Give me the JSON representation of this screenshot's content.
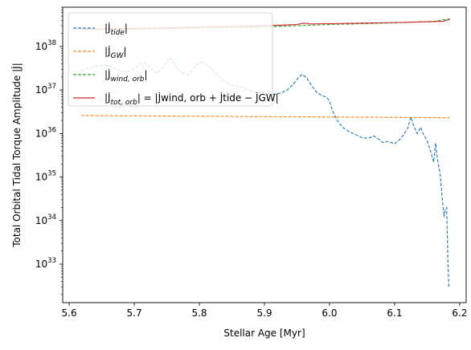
{
  "chart_data": {
    "type": "line",
    "xlabel": "Stellar Age [Myr]",
    "ylabel": "Total Orbital Tidal Torque Amplitude |J̇|",
    "xlim": [
      5.59,
      6.21
    ],
    "ylim": [
      1.3e+32,
      8e+38
    ],
    "yscale": "log",
    "grid": false,
    "legend_position": "upper-left",
    "x_ticks": [
      5.6,
      5.7,
      5.8,
      5.9,
      6.0,
      6.1,
      6.2
    ],
    "x_tick_labels": [
      "5.6",
      "5.7",
      "5.8",
      "5.9",
      "6.0",
      "6.1",
      "6.2"
    ],
    "y_ticks": [
      1e+33,
      1e+34,
      1e+35,
      1e+36,
      1e+37,
      1e+38
    ],
    "y_tick_labels": [
      {
        "base": "10",
        "exp": "33"
      },
      {
        "base": "10",
        "exp": "34"
      },
      {
        "base": "10",
        "exp": "35"
      },
      {
        "base": "10",
        "exp": "36"
      },
      {
        "base": "10",
        "exp": "37"
      },
      {
        "base": "10",
        "exp": "38"
      }
    ],
    "legend": [
      {
        "label": "|J̇tide|",
        "main": "|J̇",
        "sub": "tide",
        "tail": "|",
        "color": "#1f77b4",
        "dash": true
      },
      {
        "label": "|J̇GW|",
        "main": "|J̇",
        "sub": "GW",
        "tail": "|",
        "color": "#ff7f0e",
        "dash": true
      },
      {
        "label": "|J̇wind,orb|",
        "main": "|J̇",
        "sub": "wind, orb",
        "tail": "|",
        "color": "#2ca02c",
        "dash": true
      },
      {
        "label": "|J̇tot,orb| = |J̇wind,orb + J̇tide − J̇GW|",
        "main": "|J̇",
        "sub": "tot, orb",
        "tail": "| = |J̇wind, orb + J̇tide − J̇GW|",
        "color": "#d62728",
        "dash": false
      }
    ],
    "series": [
      {
        "color": "#1f77b4",
        "dashed": true,
        "x": [
          5.618,
          5.63,
          5.645,
          5.655,
          5.665,
          5.675,
          5.685,
          5.695,
          5.705,
          5.715,
          5.725,
          5.735,
          5.745,
          5.755,
          5.765,
          5.775,
          5.785,
          5.795,
          5.805,
          5.815,
          5.825,
          5.835,
          5.845,
          5.855,
          5.865,
          5.875,
          5.885,
          5.895,
          5.905,
          5.915,
          5.925,
          5.935,
          5.945,
          5.952,
          5.958,
          5.965,
          5.972,
          5.98,
          5.988,
          5.996,
          6.0,
          6.005,
          6.012,
          6.02,
          6.03,
          6.04,
          6.05,
          6.06,
          6.068,
          6.075,
          6.082,
          6.09,
          6.1,
          6.11,
          6.12,
          6.125,
          6.13,
          6.135,
          6.14,
          6.145,
          6.15,
          6.155,
          6.16,
          6.163,
          6.166,
          6.17,
          6.173,
          6.176,
          6.178,
          6.18,
          6.182,
          6.1835,
          6.1845
        ],
        "y": [
          2.8e+37,
          3.2e+37,
          3.6e+37,
          3.8e+37,
          3.4e+37,
          2.9e+37,
          2.6e+37,
          2.8e+37,
          3.6e+37,
          4.4e+37,
          3.2e+37,
          2.4e+37,
          3.4e+37,
          5.6e+37,
          3.2e+37,
          2.4e+37,
          2.3e+37,
          3.8e+37,
          4.4e+37,
          3.4e+37,
          2.5e+37,
          1.8e+37,
          1.4e+37,
          1.25e+37,
          1.15e+37,
          1e+37,
          9e+36,
          8.5e+36,
          8.2e+36,
          8e+36,
          8.5e+36,
          1e+37,
          1.4e+37,
          1.9e+37,
          2.3e+37,
          1.9e+37,
          1.3e+37,
          9e+36,
          7.5e+36,
          6.8e+36,
          5.5e+36,
          3.2e+36,
          2e+36,
          1.4e+36,
          1.1e+36,
          9.5e+35,
          8e+35,
          7.8e+35,
          8.8e+35,
          7.6e+35,
          6.2e+35,
          6.6e+35,
          5.8e+35,
          7.8e+35,
          1.3e+36,
          2.4e+36,
          1.4e+36,
          1e+36,
          1.4e+36,
          9e+35,
          7e+35,
          4e+35,
          2.2e+35,
          6e+35,
          2.5e+35,
          1.2e+35,
          3.5e+34,
          1.2e+34,
          1.8e+34,
          2e+34,
          1e+33,
          3e+32,
          3e+32
        ]
      },
      {
        "color": "#ff7f0e",
        "dashed": true,
        "x": [
          5.618,
          5.8,
          5.9,
          6.0,
          6.1,
          6.185
        ],
        "y": [
          2.6e+36,
          2.5e+36,
          2.45e+36,
          2.4e+36,
          2.35e+36,
          2.3e+36
        ]
      },
      {
        "color": "#2ca02c",
        "dashed": true,
        "x": [
          5.618,
          5.7,
          5.8,
          5.9,
          5.96,
          6.0,
          6.1,
          6.16,
          6.185
        ],
        "y": [
          2.45e+38,
          2.5e+38,
          2.65e+38,
          2.85e+38,
          3.05e+38,
          3.2e+38,
          3.5e+38,
          3.8e+38,
          4.3e+38
        ]
      },
      {
        "color": "#d62728",
        "dashed": false,
        "x": [
          5.618,
          5.7,
          5.76,
          5.8,
          5.9,
          5.95,
          5.96,
          5.97,
          6.0,
          6.05,
          6.1,
          6.15,
          6.175,
          6.182,
          6.185
        ],
        "y": [
          2.5e+38,
          2.6e+38,
          2.7e+38,
          2.8e+38,
          3e+38,
          3.2e+38,
          3.45e+38,
          3.3e+38,
          3.35e+38,
          3.45e+38,
          3.55e+38,
          3.7e+38,
          3.8e+38,
          4.1e+38,
          4.3e+38
        ]
      }
    ]
  }
}
